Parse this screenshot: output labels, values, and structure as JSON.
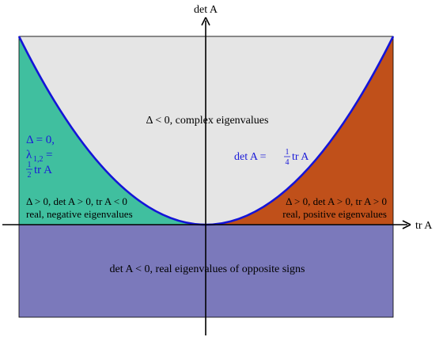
{
  "axes": {
    "x_label": "tr A",
    "y_label": "det A"
  },
  "regions": {
    "complex": "Δ < 0, complex eigenvalues",
    "opposite_signs": "det A < 0, real eigenvalues of opposite signs",
    "negative_line1": "Δ > 0, det A > 0, tr A < 0",
    "negative_line2": "real, negative eigenvalues",
    "positive_line1": "Δ > 0, det A > 0, tr A > 0",
    "positive_line2": "real, positive eigenvalues"
  },
  "parabola_label": {
    "prefix": "det A = ",
    "frac_num": "1",
    "frac_den": "4",
    "suffix": "tr A"
  },
  "discriminant_label": {
    "line1": "Δ = 0,",
    "line2_sym": "λ",
    "line2_sub": "1,2",
    "line2_eq": " =",
    "frac_num": "1",
    "frac_den": "2",
    "line3_suffix": "tr A"
  },
  "colors": {
    "complex_fill": "#e5e5e5",
    "negative_fill": "#40bf9f",
    "positive_fill": "#c0501a",
    "opposite_fill": "#7b79bb",
    "parabola": "#1414d8",
    "text_blue": "#1a1ad8"
  }
}
